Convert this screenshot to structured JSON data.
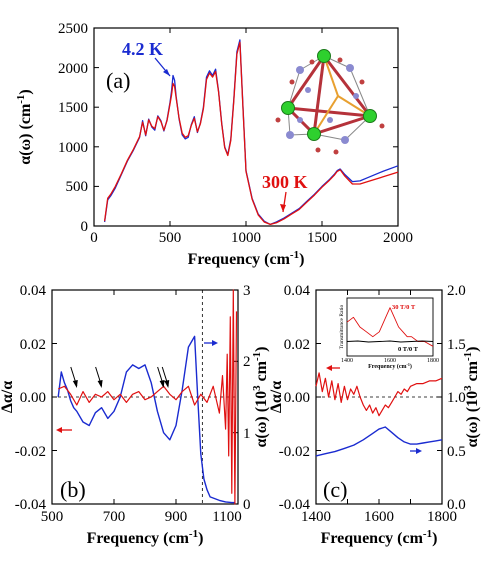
{
  "colors": {
    "blue": "#1a2bd0",
    "red": "#e01010",
    "black": "#000000",
    "inset_red": "#e01010",
    "inset_black": "#000000"
  },
  "chart_data": [
    {
      "id": "a",
      "type": "line",
      "panel_label": "(a)",
      "xlabel_text": "Frequency (cm",
      "xlabel_sup": "-1",
      "xlabel_close": ")",
      "ylabel_text": "α(ω) (cm",
      "ylabel_sup": "-1",
      "ylabel_close": ")",
      "xlim": [
        0,
        2000
      ],
      "ylim": [
        0,
        2500
      ],
      "xticks": [
        "0",
        "500",
        "1000",
        "1500",
        "2000"
      ],
      "yticks": [
        "0",
        "500",
        "1000",
        "1500",
        "2000",
        "2500"
      ],
      "annotations": [
        {
          "text": "4.2 K",
          "color": "#1a2bd0",
          "arrow_to": [
            520,
            1900
          ]
        },
        {
          "text": "300 K",
          "color": "#e01010",
          "arrow_to": [
            1230,
            100
          ]
        }
      ],
      "series": [
        {
          "name": "4.2 K",
          "color": "#1a2bd0",
          "x": [
            70,
            90,
            110,
            140,
            180,
            220,
            260,
            300,
            320,
            340,
            360,
            380,
            400,
            420,
            440,
            460,
            480,
            500,
            510,
            520,
            530,
            540,
            560,
            580,
            600,
            620,
            640,
            660,
            680,
            700,
            720,
            740,
            760,
            780,
            800,
            820,
            840,
            860,
            880,
            900,
            920,
            940,
            960,
            980,
            1000,
            1040,
            1080,
            1120,
            1160,
            1200,
            1250,
            1300,
            1350,
            1400,
            1450,
            1500,
            1550,
            1580,
            1600,
            1620,
            1650,
            1700,
            1750,
            1800,
            1900,
            2000
          ],
          "y": [
            50,
            330,
            380,
            480,
            650,
            820,
            960,
            1120,
            1330,
            1140,
            1350,
            1250,
            1210,
            1390,
            1330,
            1200,
            1340,
            1560,
            1700,
            1900,
            1840,
            1640,
            1350,
            1150,
            1100,
            1120,
            1280,
            1380,
            1180,
            1300,
            1500,
            1880,
            1960,
            1900,
            1980,
            1700,
            1300,
            1000,
            900,
            1100,
            1600,
            2200,
            2350,
            1500,
            700,
            350,
            150,
            60,
            20,
            50,
            100,
            160,
            220,
            310,
            400,
            500,
            590,
            650,
            700,
            720,
            650,
            560,
            570,
            610,
            690,
            760
          ]
        },
        {
          "name": "300 K",
          "color": "#e01010",
          "x": [
            70,
            90,
            110,
            140,
            180,
            220,
            260,
            300,
            320,
            340,
            360,
            380,
            400,
            420,
            440,
            460,
            480,
            500,
            510,
            520,
            530,
            540,
            560,
            580,
            600,
            620,
            640,
            660,
            680,
            700,
            720,
            740,
            760,
            780,
            800,
            820,
            840,
            860,
            880,
            900,
            920,
            940,
            960,
            980,
            1000,
            1040,
            1080,
            1120,
            1160,
            1200,
            1250,
            1300,
            1350,
            1400,
            1450,
            1500,
            1550,
            1580,
            1600,
            1620,
            1650,
            1700,
            1750,
            1800,
            1900,
            2000
          ],
          "y": [
            60,
            350,
            400,
            500,
            660,
            830,
            970,
            1130,
            1310,
            1150,
            1340,
            1260,
            1230,
            1380,
            1320,
            1210,
            1330,
            1540,
            1650,
            1800,
            1760,
            1620,
            1360,
            1170,
            1120,
            1140,
            1270,
            1360,
            1190,
            1290,
            1480,
            1850,
            1930,
            1880,
            1950,
            1690,
            1290,
            990,
            890,
            1080,
            1580,
            2170,
            2320,
            1480,
            690,
            340,
            140,
            50,
            20,
            40,
            90,
            150,
            210,
            300,
            390,
            490,
            580,
            640,
            690,
            710,
            630,
            530,
            530,
            560,
            620,
            680
          ]
        }
      ]
    },
    {
      "id": "b",
      "type": "line",
      "panel_label": "(b)",
      "xlabel_text": "Frequency (cm",
      "xlabel_sup": "-1",
      "xlabel_close": ")",
      "ylabel_left": "Δα/α",
      "ylabel_right_text": "α(ω) (10",
      "ylabel_right_sup": "3",
      "ylabel_right_mid": " cm",
      "ylabel_right_sup2": "-1",
      "ylabel_right_close": ")",
      "xlim": [
        500,
        1100
      ],
      "ylim_left": [
        -0.04,
        0.04
      ],
      "ylim_right": [
        0,
        3
      ],
      "xticks": [
        "500",
        "700",
        "900",
        "1100"
      ],
      "yticks_left": [
        "-0.04",
        "-0.02",
        "0.00",
        "0.02",
        "0.04"
      ],
      "yticks_right": [
        "0",
        "1",
        "2",
        "3"
      ],
      "arrow_positions_x": [
        580,
        660,
        860,
        875
      ],
      "vline_x": 985,
      "series": [
        {
          "name": "Δα/α",
          "color": "#e01010",
          "axis": "left",
          "x": [
            520,
            540,
            560,
            580,
            600,
            620,
            640,
            660,
            680,
            700,
            720,
            740,
            760,
            780,
            800,
            820,
            840,
            860,
            880,
            900,
            920,
            940,
            960,
            980,
            1000,
            1020,
            1040,
            1050,
            1060,
            1065,
            1070,
            1075,
            1080,
            1085,
            1090,
            1095
          ],
          "y": [
            0.003,
            0.004,
            0.001,
            -0.003,
            0.002,
            -0.002,
            0.001,
            0.0,
            0.002,
            -0.001,
            0.001,
            -0.002,
            0.001,
            0.002,
            -0.001,
            0.0,
            0.002,
            0.004,
            0.001,
            -0.001,
            0.002,
            0.004,
            -0.003,
            0.001,
            -0.002,
            0.004,
            -0.006,
            0.008,
            -0.012,
            0.016,
            -0.022,
            0.03,
            -0.036,
            0.04,
            -0.04,
            0.032
          ]
        },
        {
          "name": "α(ω)",
          "color": "#1a2bd0",
          "axis": "right",
          "x": [
            520,
            530,
            540,
            550,
            560,
            570,
            580,
            600,
            620,
            640,
            660,
            680,
            700,
            720,
            740,
            760,
            780,
            800,
            820,
            840,
            860,
            880,
            900,
            920,
            940,
            960,
            970,
            980,
            990,
            1000,
            1010,
            1040,
            1060,
            1080,
            1090
          ],
          "y": [
            1.5,
            1.85,
            1.7,
            1.6,
            1.45,
            1.35,
            1.3,
            1.15,
            1.1,
            1.28,
            1.35,
            1.2,
            1.3,
            1.5,
            1.85,
            1.95,
            1.9,
            1.95,
            1.7,
            1.3,
            1.0,
            0.9,
            1.1,
            1.6,
            2.2,
            2.35,
            1.5,
            0.7,
            0.35,
            0.2,
            0.1,
            0.05,
            0.03,
            0.02,
            0.02
          ]
        }
      ]
    },
    {
      "id": "c",
      "type": "line",
      "panel_label": "(c)",
      "xlabel_text": "Frequency (cm",
      "xlabel_sup": "-1",
      "xlabel_close": ")",
      "ylabel_left": "Δα/α",
      "ylabel_right_text": "α(ω) (10",
      "ylabel_right_sup": "3",
      "ylabel_right_mid": " cm",
      "ylabel_right_sup2": "-1",
      "ylabel_right_close": ")",
      "xlim": [
        1400,
        1800
      ],
      "ylim_left": [
        -0.04,
        0.04
      ],
      "ylim_right": [
        0.0,
        2.0
      ],
      "xticks": [
        "1400",
        "1600",
        "1800"
      ],
      "yticks_left": [
        "-0.04",
        "-0.02",
        "0.00",
        "0.02",
        "0.04"
      ],
      "yticks_right": [
        "0.0",
        "0.5",
        "1.0",
        "1.5",
        "2.0"
      ],
      "series": [
        {
          "name": "Δα/α",
          "color": "#e01010",
          "axis": "left",
          "x": [
            1400,
            1410,
            1420,
            1430,
            1440,
            1450,
            1460,
            1470,
            1480,
            1490,
            1500,
            1510,
            1520,
            1530,
            1540,
            1550,
            1560,
            1570,
            1580,
            1590,
            1600,
            1610,
            1620,
            1630,
            1640,
            1650,
            1660,
            1670,
            1680,
            1690,
            1700,
            1720,
            1740,
            1760,
            1780,
            1800
          ],
          "y": [
            0.004,
            0.009,
            0.002,
            0.007,
            0.0,
            0.006,
            -0.001,
            0.005,
            -0.002,
            0.004,
            -0.001,
            0.003,
            0.001,
            0.004,
            0.0,
            -0.003,
            -0.005,
            -0.003,
            -0.006,
            -0.004,
            -0.007,
            -0.005,
            -0.003,
            -0.004,
            -0.002,
            0.0,
            0.002,
            0.001,
            0.003,
            0.002,
            0.004,
            0.005,
            0.005,
            0.006,
            0.006,
            0.007
          ]
        },
        {
          "name": "α(ω)",
          "color": "#1a2bd0",
          "axis": "right",
          "x": [
            1400,
            1430,
            1460,
            1490,
            1520,
            1550,
            1580,
            1600,
            1620,
            1640,
            1660,
            1680,
            1700,
            1720,
            1740,
            1760,
            1780,
            1800
          ],
          "y": [
            0.45,
            0.47,
            0.49,
            0.52,
            0.55,
            0.6,
            0.66,
            0.7,
            0.72,
            0.67,
            0.62,
            0.58,
            0.56,
            0.56,
            0.57,
            0.58,
            0.59,
            0.6
          ]
        }
      ],
      "inset": {
        "ylabel": "Transmittance Ratio",
        "xlabel_text": "Frequency (cm",
        "xlabel_sup": "-1",
        "xlabel_close": ")",
        "xticks": [
          "1400",
          "1600",
          "1800"
        ],
        "label_red": "30 T/0 T",
        "label_black": "0 T/0 T",
        "series": [
          {
            "name": "30 T/0 T",
            "color": "#e01010",
            "x": [
              1400,
              1430,
              1460,
              1490,
              1520,
              1550,
              1580,
              1600,
              1620,
              1640,
              1660,
              1680,
              1700,
              1730,
              1760,
              1800
            ],
            "y": [
              1.02,
              1.03,
              1.01,
              1.0,
              0.99,
              1.0,
              1.03,
              1.05,
              1.03,
              1.01,
              1.0,
              0.99,
              0.99,
              0.98,
              0.98,
              0.97
            ]
          },
          {
            "name": "0 T/0 T",
            "color": "#000000",
            "x": [
              1400,
              1450,
              1500,
              1550,
              1600,
              1650,
              1700,
              1750,
              1800
            ],
            "y": [
              0.98,
              0.981,
              0.979,
              0.98,
              0.981,
              0.979,
              0.98,
              0.981,
              0.98
            ]
          }
        ]
      }
    }
  ]
}
